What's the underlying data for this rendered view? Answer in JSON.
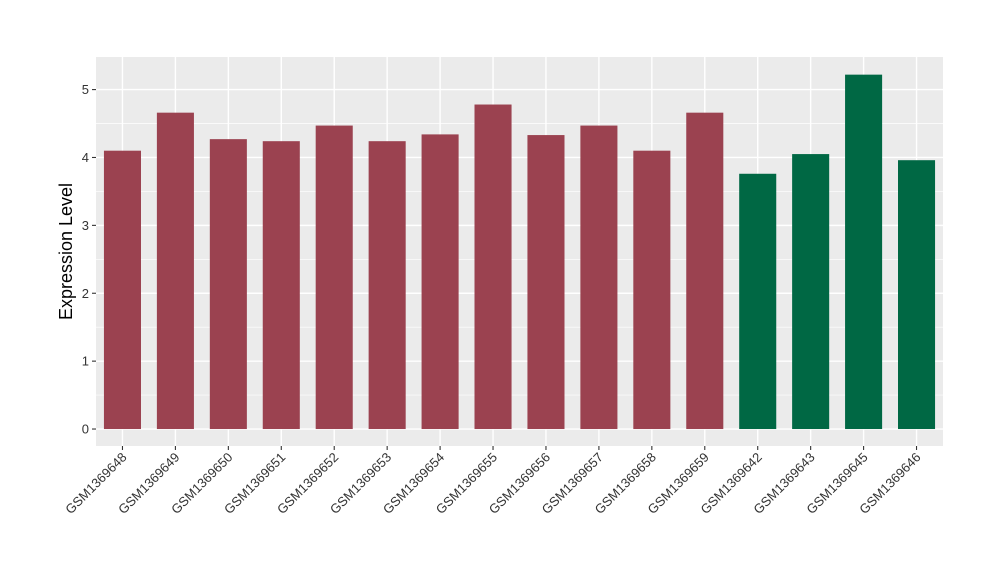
{
  "chart_data": {
    "type": "bar",
    "title": "",
    "xlabel": "",
    "ylabel": "Expression Level",
    "ylim": [
      -0.25,
      5.48
    ],
    "yticks": [
      0,
      1,
      2,
      3,
      4,
      5
    ],
    "grid": true,
    "legend": "none",
    "categories": [
      "GSM1369648",
      "GSM1369649",
      "GSM1369650",
      "GSM1369651",
      "GSM1369652",
      "GSM1369653",
      "GSM1369654",
      "GSM1369655",
      "GSM1369656",
      "GSM1369657",
      "GSM1369658",
      "GSM1369659",
      "GSM1369642",
      "GSM1369643",
      "GSM1369645",
      "GSM1369646"
    ],
    "values": [
      4.1,
      4.66,
      4.27,
      4.24,
      4.47,
      4.24,
      4.34,
      4.78,
      4.33,
      4.47,
      4.1,
      4.66,
      3.76,
      4.05,
      5.22,
      3.96
    ],
    "groups": [
      0,
      0,
      0,
      0,
      0,
      0,
      0,
      0,
      0,
      0,
      0,
      0,
      1,
      1,
      1,
      1
    ],
    "group_colors": [
      "#9b4250",
      "#006844"
    ],
    "panel_background": "#ebebeb",
    "grid_color": "#ffffff"
  }
}
